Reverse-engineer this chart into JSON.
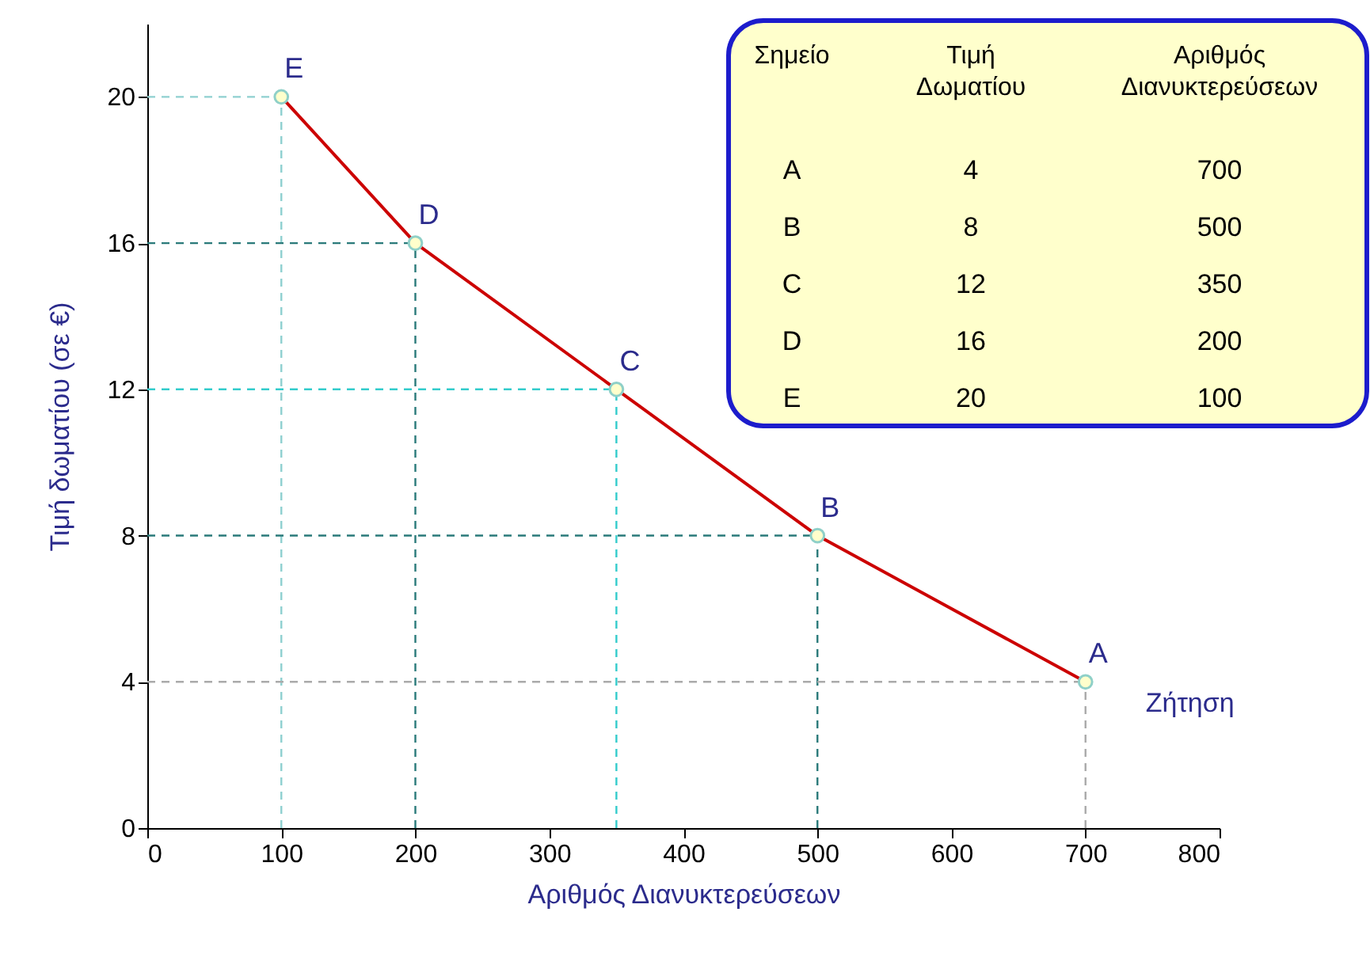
{
  "chart_data": {
    "type": "line",
    "xlabel": "Αριθμός Διανυκτερεύσεων",
    "ylabel": "Τιμή δωματίου (σε €)",
    "x": [
      700,
      500,
      350,
      200,
      100
    ],
    "series": [
      {
        "name": "Ζήτηση",
        "color": "#cc0000",
        "values": [
          4,
          8,
          12,
          16,
          20
        ]
      }
    ],
    "xlim": [
      0,
      800
    ],
    "xticks": [
      0,
      100,
      200,
      300,
      400,
      500,
      600,
      700,
      800
    ],
    "ylim": [
      0,
      22
    ],
    "yticks": [
      0,
      4,
      8,
      12,
      16,
      20
    ],
    "marker": "circle",
    "line_style": "solid",
    "ref_lines": [
      {
        "axis": "x",
        "value": 700,
        "color": "#aaaaaa",
        "line_style": "dashed"
      },
      {
        "axis": "x",
        "value": 500,
        "color": "#2a7a7a",
        "line_style": "dashed"
      },
      {
        "axis": "x",
        "value": 350,
        "color": "#33cccc",
        "line_style": "dashed"
      },
      {
        "axis": "x",
        "value": 200,
        "color": "#2a7a7a",
        "line_style": "dashed"
      },
      {
        "axis": "x",
        "value": 100,
        "color": "#8fd0d0",
        "line_style": "dashed"
      },
      {
        "axis": "y",
        "value": 4,
        "color": "#aaaaaa",
        "line_style": "dashed"
      },
      {
        "axis": "y",
        "value": 8,
        "color": "#2a7a7a",
        "line_style": "dashed"
      },
      {
        "axis": "y",
        "value": 12,
        "color": "#33cccc",
        "line_style": "dashed"
      },
      {
        "axis": "y",
        "value": 16,
        "color": "#2a7a7a",
        "line_style": "dashed"
      },
      {
        "axis": "y",
        "value": 20,
        "color": "#8fd0d0",
        "line_style": "dashed"
      }
    ],
    "annotations": [
      {
        "text": "A",
        "x": 700,
        "y": 4
      },
      {
        "text": "B",
        "x": 500,
        "y": 8
      },
      {
        "text": "C",
        "x": 350,
        "y": 12
      },
      {
        "text": "D",
        "x": 200,
        "y": 16
      },
      {
        "text": "E",
        "x": 100,
        "y": 20
      },
      "Σημείο",
      "Τιμή Δωματίου",
      "Αριθμός Διανυκτερεύσεων",
      "A",
      "4",
      "700",
      "B",
      "8",
      "500",
      "C",
      "12",
      "350",
      "D",
      "16",
      "200",
      "E",
      "20",
      "100"
    ]
  }
}
